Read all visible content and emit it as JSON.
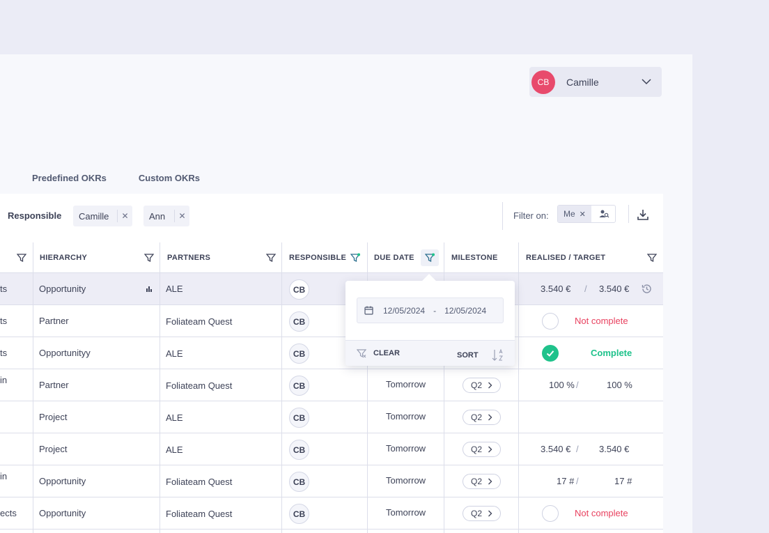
{
  "user": {
    "initials": "CB",
    "name": "Camille"
  },
  "tabs": [
    "Predefined OKRs",
    "Custom OKRs"
  ],
  "filterbar": {
    "label": "Responsible",
    "chips": [
      "Camille",
      "Ann"
    ],
    "filter_on_label": "Filter on:",
    "me_label": "Me"
  },
  "columns": {
    "hierarchy": "HIERARCHY",
    "partners": "PARTNERS",
    "responsible": "RESPONSIBLE",
    "due_date": "DUE DATE",
    "milestone": "MILESTONE",
    "realised_target": "REALISED / TARGET"
  },
  "rows": [
    {
      "first": "ts",
      "hierarchy": "Opportunity",
      "partner": "ALE",
      "responsible": "CB",
      "due": "",
      "milestone": "",
      "realised": "3.540 €",
      "target": "3.540 €",
      "status": ""
    },
    {
      "first": "ts",
      "hierarchy": "Partner",
      "partner": "Foliateam Quest",
      "responsible": "CB",
      "due": "",
      "milestone": "",
      "realised": "",
      "target": "",
      "status": "Not complete"
    },
    {
      "first": "ts",
      "hierarchy": "Opportunityy",
      "partner": "ALE",
      "responsible": "CB",
      "due": "",
      "milestone": "",
      "realised": "",
      "target": "",
      "status": "Complete"
    },
    {
      "first": "in",
      "hierarchy": "Partner",
      "partner": "Foliateam Quest",
      "responsible": "CB",
      "due": "Tomorrow",
      "milestone": "Q2",
      "realised": "100 %",
      "target": "100 %",
      "status": ""
    },
    {
      "first": "",
      "hierarchy": "Project",
      "partner": "ALE",
      "responsible": "CB",
      "due": "Tomorrow",
      "milestone": "Q2",
      "realised": "",
      "target": "",
      "status": ""
    },
    {
      "first": "",
      "hierarchy": "Project",
      "partner": "ALE",
      "responsible": "CB",
      "due": "Tomorrow",
      "milestone": "Q2",
      "realised": "3.540 €",
      "target": "3.540 €",
      "status": ""
    },
    {
      "first": "in",
      "hierarchy": "Opportunity",
      "partner": "Foliateam Quest",
      "responsible": "CB",
      "due": "Tomorrow",
      "milestone": "Q2",
      "realised": "17 #",
      "target": "17 #",
      "status": ""
    },
    {
      "first": "ects",
      "hierarchy": "Opportunity",
      "partner": "Foliateam Quest",
      "responsible": "CB",
      "due": "Tomorrow",
      "milestone": "Q2",
      "realised": "",
      "target": "",
      "status": "Not complete"
    }
  ],
  "date_popup": {
    "from": "12/05/2024",
    "separator": "-",
    "to": "12/05/2024",
    "clear_label": "CLEAR",
    "sort_label": "SORT"
  },
  "colors": {
    "accent": "#1fc28b",
    "danger": "#e8415f",
    "avatar": "#e84a6c"
  },
  "slash": "/"
}
